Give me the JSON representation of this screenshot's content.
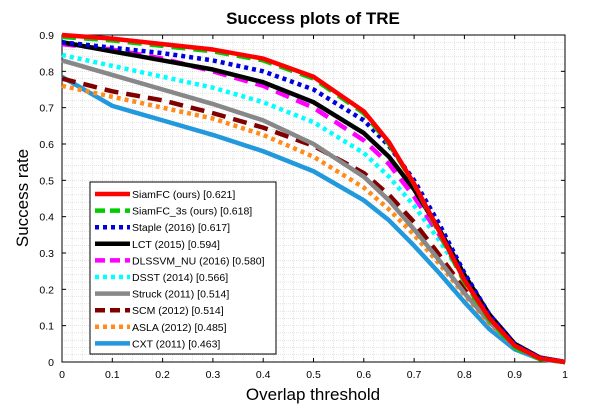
{
  "chart_data": {
    "type": "line",
    "title": "Success plots of TRE",
    "xlabel": "Overlap threshold",
    "ylabel": "Success rate",
    "xlim": [
      0,
      1
    ],
    "ylim": [
      0,
      0.9
    ],
    "xticks": [
      "0",
      "0.1",
      "0.2",
      "0.3",
      "0.4",
      "0.5",
      "0.6",
      "0.7",
      "0.8",
      "0.9",
      "1"
    ],
    "yticks": [
      "0",
      "0.1",
      "0.2",
      "0.3",
      "0.4",
      "0.5",
      "0.6",
      "0.7",
      "0.8",
      "0.9"
    ],
    "grid": true,
    "legend_position": "lower-left",
    "x": [
      0,
      0.1,
      0.2,
      0.3,
      0.4,
      0.5,
      0.6,
      0.65,
      0.7,
      0.75,
      0.8,
      0.85,
      0.9,
      0.95,
      1
    ],
    "series": [
      {
        "name": "SiamFC (ours) [0.621]",
        "color": "#ff0000",
        "dash": "solid",
        "values": [
          0.9,
          0.89,
          0.875,
          0.86,
          0.835,
          0.785,
          0.69,
          0.605,
          0.49,
          0.36,
          0.225,
          0.12,
          0.045,
          0.01,
          0.0
        ]
      },
      {
        "name": "SiamFC_3s (ours) [0.618]",
        "color": "#00cc00",
        "dash": "dash",
        "values": [
          0.895,
          0.885,
          0.87,
          0.855,
          0.83,
          0.78,
          0.685,
          0.6,
          0.49,
          0.355,
          0.22,
          0.115,
          0.04,
          0.008,
          0.0
        ]
      },
      {
        "name": "Staple (2016) [0.617]",
        "color": "#0000dd",
        "dash": "dot",
        "values": [
          0.88,
          0.865,
          0.85,
          0.83,
          0.8,
          0.75,
          0.665,
          0.595,
          0.5,
          0.38,
          0.245,
          0.13,
          0.05,
          0.012,
          0.0
        ]
      },
      {
        "name": "LCT (2015) [0.594]",
        "color": "#000000",
        "dash": "solid",
        "values": [
          0.88,
          0.855,
          0.83,
          0.805,
          0.77,
          0.715,
          0.63,
          0.565,
          0.475,
          0.365,
          0.24,
          0.13,
          0.05,
          0.012,
          0.0
        ]
      },
      {
        "name": "DLSSVM_NU (2016) [0.580]",
        "color": "#ff00ff",
        "dash": "dash",
        "values": [
          0.875,
          0.86,
          0.835,
          0.8,
          0.76,
          0.7,
          0.61,
          0.545,
          0.455,
          0.35,
          0.235,
          0.13,
          0.05,
          0.012,
          0.0
        ]
      },
      {
        "name": "DSST (2014) [0.566]",
        "color": "#00ffff",
        "dash": "dot",
        "values": [
          0.845,
          0.815,
          0.785,
          0.755,
          0.715,
          0.66,
          0.575,
          0.51,
          0.43,
          0.335,
          0.23,
          0.13,
          0.05,
          0.012,
          0.0
        ]
      },
      {
        "name": "Struck (2011) [0.514]",
        "color": "#888888",
        "dash": "solid",
        "values": [
          0.83,
          0.79,
          0.75,
          0.71,
          0.665,
          0.6,
          0.51,
          0.445,
          0.365,
          0.28,
          0.19,
          0.11,
          0.045,
          0.01,
          0.0
        ]
      },
      {
        "name": "SCM (2012) [0.514]",
        "color": "#800000",
        "dash": "dash",
        "values": [
          0.78,
          0.745,
          0.72,
          0.685,
          0.645,
          0.595,
          0.52,
          0.46,
          0.385,
          0.295,
          0.2,
          0.11,
          0.045,
          0.01,
          0.0
        ]
      },
      {
        "name": "ASLA (2012) [0.485]",
        "color": "#ff8c1a",
        "dash": "dot",
        "values": [
          0.76,
          0.73,
          0.7,
          0.67,
          0.625,
          0.565,
          0.48,
          0.42,
          0.35,
          0.27,
          0.185,
          0.105,
          0.045,
          0.01,
          0.0
        ]
      },
      {
        "name": "CXT (2011) [0.463]",
        "color": "#2299dd",
        "dash": "solid",
        "values": [
          0.785,
          0.705,
          0.665,
          0.625,
          0.58,
          0.525,
          0.445,
          0.39,
          0.32,
          0.245,
          0.165,
          0.09,
          0.035,
          0.008,
          0.0
        ]
      }
    ]
  }
}
